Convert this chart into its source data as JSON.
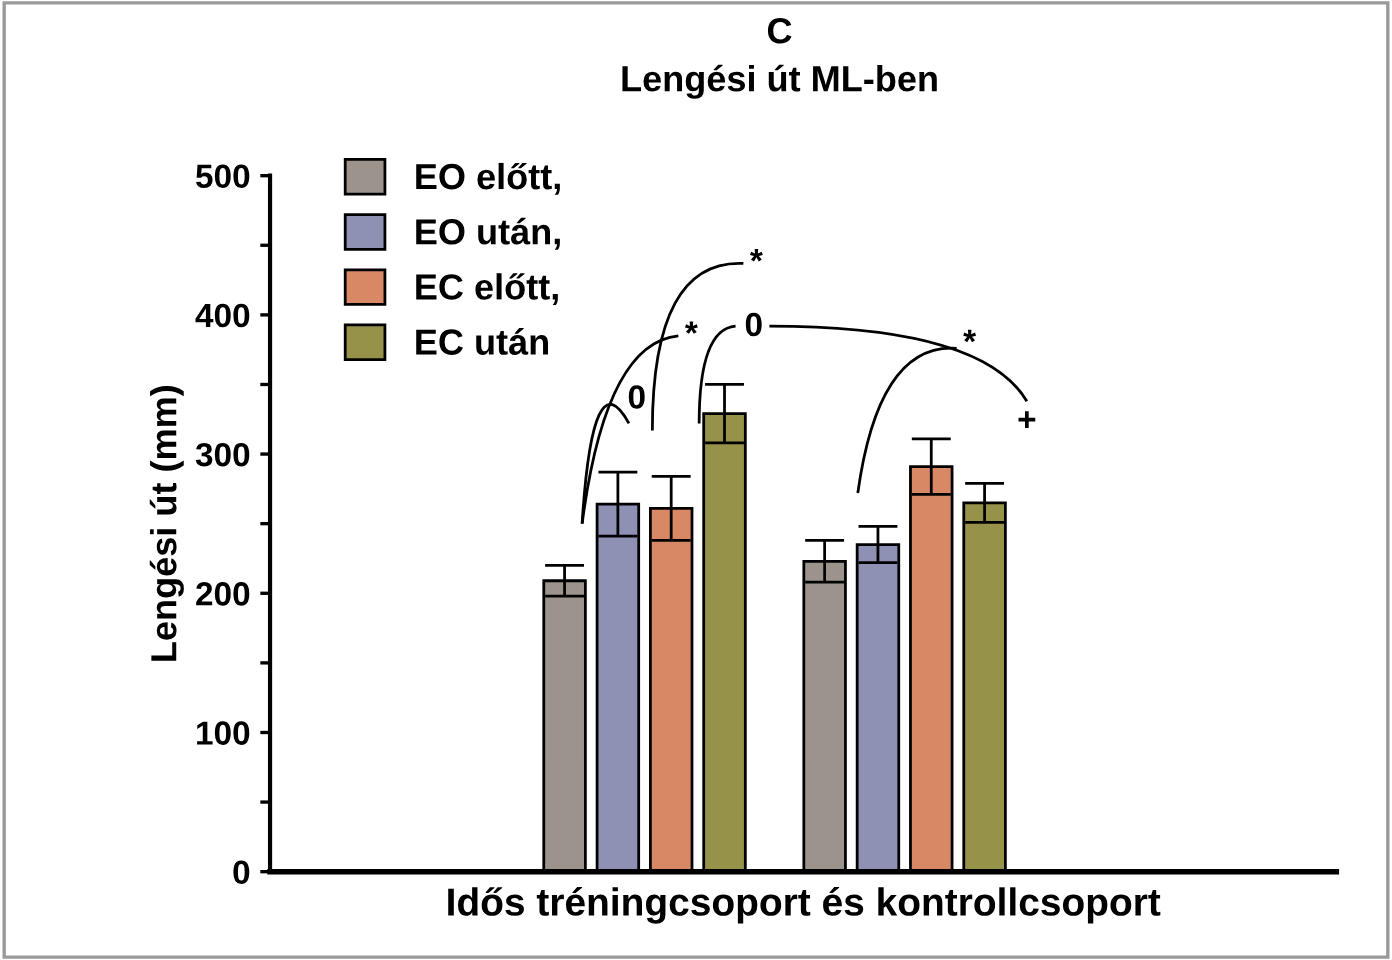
{
  "chart_data": {
    "type": "bar",
    "title": "C",
    "subtitle": "Lengési út ML-ben",
    "xlabel": "Idős tréningcsoport és kontrollcsoport",
    "ylabel": "Lengési út (mm)",
    "categories": [
      null,
      null
    ],
    "series": [
      {
        "name": "EO előtt,",
        "color": "#9c948c",
        "values": [
          209,
          223
        ],
        "errors": [
          11,
          15
        ]
      },
      {
        "name": "EO után,",
        "color": "#8e90b4",
        "values": [
          264,
          235
        ],
        "errors": [
          23,
          13
        ]
      },
      {
        "name": "EC előtt,",
        "color": "#d98866",
        "values": [
          261,
          291
        ],
        "errors": [
          23,
          20
        ]
      },
      {
        "name": "EC után",
        "color": "#979249",
        "values": [
          329,
          265
        ],
        "errors": [
          21,
          14
        ]
      }
    ],
    "ylim": [
      0,
      500
    ],
    "yticks": [
      0,
      {
        "value": 50,
        "label": null
      },
      100,
      {
        "value": 150,
        "label": null
      },
      200,
      {
        "value": 250,
        "label": null
      },
      300,
      {
        "value": 350,
        "label": null
      },
      400,
      {
        "value": 450,
        "label": null
      },
      500
    ],
    "annotations": [
      "0",
      "*",
      "*",
      "0",
      "*",
      "+"
    ],
    "legend": "top left",
    "grid": false
  }
}
